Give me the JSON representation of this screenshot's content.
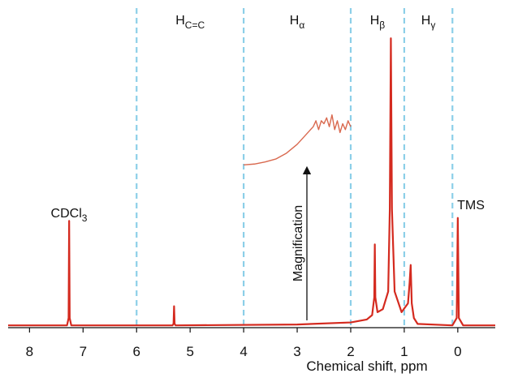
{
  "chart_data": {
    "type": "line",
    "xlabel": "Chemical shift, ppm",
    "xlim": [
      8.4,
      -0.7
    ],
    "xticks": [
      8,
      7,
      6,
      5,
      4,
      3,
      2,
      1,
      0
    ],
    "ylim": [
      0,
      100
    ],
    "dividers": [
      6,
      4,
      2,
      1,
      0.1
    ],
    "divider_color": "#8ccfe8",
    "regions": [
      {
        "label": "H",
        "sub": "C=C"
      },
      {
        "label": "H",
        "sub": "α"
      },
      {
        "label": "H",
        "sub": "β"
      },
      {
        "label": "H",
        "sub": "γ"
      }
    ],
    "annotations": [
      {
        "text": "CDCl",
        "sub": "3"
      },
      {
        "text": "TMS"
      },
      {
        "text": "Magnification"
      }
    ],
    "series": [
      {
        "color": "#d42a1f",
        "x": [
          8.4,
          7.3,
          7.27,
          7.26,
          7.25,
          7.22,
          5.33,
          5.31,
          5.3,
          5.29,
          5.27,
          3.0,
          2.0,
          1.7,
          1.6,
          1.56,
          1.55,
          1.54,
          1.5,
          1.4,
          1.3,
          1.27,
          1.25,
          1.23,
          1.18,
          1.05,
          0.93,
          0.9,
          0.88,
          0.86,
          0.82,
          0.75,
          0.1,
          0.02,
          0.0,
          -0.02,
          -0.1,
          -0.7
        ],
        "values": [
          0.5,
          0.5,
          3,
          36,
          3,
          0.5,
          0.5,
          1,
          7,
          1,
          0.5,
          0.8,
          1.5,
          2.5,
          4,
          10,
          28,
          10,
          5,
          6,
          12,
          40,
          98,
          40,
          12,
          5,
          8,
          15,
          21,
          8,
          3,
          1,
          0.5,
          3,
          37,
          3,
          0.5,
          0.5
        ]
      },
      {
        "color": "#d9694f",
        "x": [
          4.0,
          3.8,
          3.6,
          3.4,
          3.2,
          3.0,
          2.9,
          2.8,
          2.7,
          2.65,
          2.6,
          2.55,
          2.5,
          2.45,
          2.4,
          2.35,
          2.3,
          2.25,
          2.2,
          2.15,
          2.1,
          2.05,
          2.0
        ],
        "values": [
          55,
          55.3,
          56,
          57,
          59,
          62,
          64,
          66,
          68,
          70,
          67,
          70,
          69,
          71,
          68,
          72,
          67,
          70,
          66,
          69,
          67,
          70,
          68
        ]
      }
    ]
  }
}
